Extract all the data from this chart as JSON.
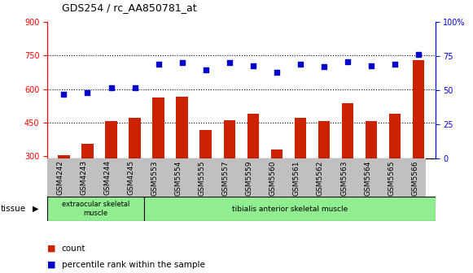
{
  "title": "GDS254 / rc_AA850781_at",
  "categories": [
    "GSM4242",
    "GSM4243",
    "GSM4244",
    "GSM4245",
    "GSM5553",
    "GSM5554",
    "GSM5555",
    "GSM5557",
    "GSM5559",
    "GSM5560",
    "GSM5561",
    "GSM5562",
    "GSM5563",
    "GSM5564",
    "GSM5565",
    "GSM5566"
  ],
  "counts": [
    305,
    355,
    458,
    470,
    562,
    565,
    415,
    462,
    490,
    330,
    472,
    455,
    535,
    455,
    490,
    730
  ],
  "percentiles": [
    47,
    48,
    52,
    52,
    69,
    70,
    65,
    70,
    68,
    63,
    69,
    67,
    71,
    68,
    69,
    76
  ],
  "bar_color": "#cc2200",
  "dot_color": "#0000cc",
  "ylim_left": [
    290,
    900
  ],
  "ylim_right": [
    0,
    100
  ],
  "yticks_left": [
    300,
    450,
    600,
    750,
    900
  ],
  "yticks_right": [
    0,
    25,
    50,
    75,
    100
  ],
  "grid_dotted_at": [
    450,
    600,
    750
  ],
  "bar_width": 0.5,
  "tissue_group1_label": "extraocular skeletal\nmuscle",
  "tissue_group1_count": 4,
  "tissue_group2_label": "tibialis anterior skeletal muscle",
  "tissue_group2_count": 12,
  "tissue_color": "#90ee90",
  "tissue_label": "tissue",
  "arrow_char": "▶",
  "legend_count_label": "count",
  "legend_pct_label": "percentile rank within the sample",
  "legend_square": "■"
}
